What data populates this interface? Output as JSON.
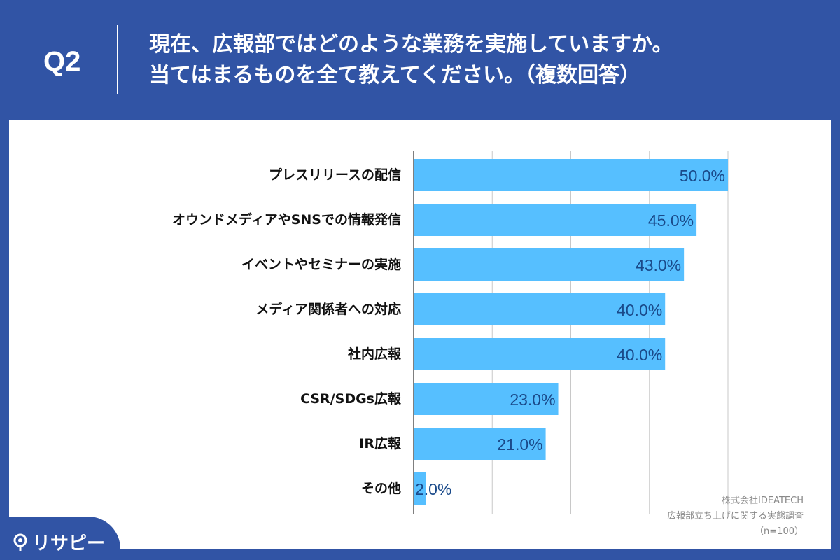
{
  "header": {
    "question_number": "Q2",
    "title_line1": "現在、広報部ではどのような業務を実施していますか。",
    "title_line2": "当てはまるものを全て教えてください。（複数回答）"
  },
  "colors": {
    "background": "#3154a5",
    "bar": "#56bfff",
    "value_label": "#1a4a8a",
    "grid": "#c8c8c8"
  },
  "chart_data": {
    "type": "bar",
    "orientation": "horizontal",
    "categories": [
      "プレスリリースの配信",
      "オウンドメディアやSNSでの情報発信",
      "イベントやセミナーの実施",
      "メディア関係者への対応",
      "社内広報",
      "CSR/SDGs広報",
      "IR広報",
      "その他"
    ],
    "values": [
      50.0,
      45.0,
      43.0,
      40.0,
      40.0,
      23.0,
      21.0,
      2.0
    ],
    "value_labels": [
      "50.0%",
      "45.0%",
      "43.0%",
      "40.0%",
      "40.0%",
      "23.0%",
      "21.0%",
      "2.0%"
    ],
    "xlim": [
      0,
      50
    ],
    "grid": true,
    "gridlines": [
      0,
      12.5,
      25,
      37.5,
      50
    ]
  },
  "source": {
    "company": "株式会社IDEATECH",
    "survey": "広報部立ち上げに関する実態調査",
    "sample": "（n=100）"
  },
  "logo": {
    "text": "リサピー"
  }
}
